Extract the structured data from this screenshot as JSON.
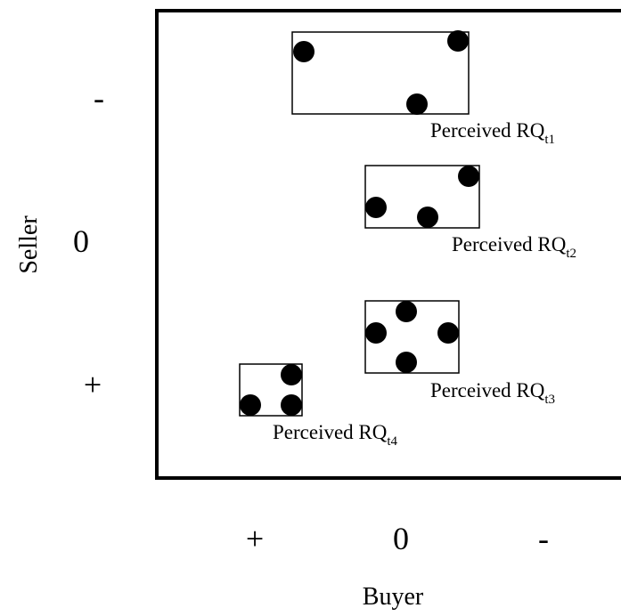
{
  "axes": {
    "x_label": "Buyer",
    "y_label": "Seller",
    "x_ticks": [
      "+",
      "0",
      "-"
    ],
    "y_ticks": [
      "-",
      "0",
      "+"
    ]
  },
  "boxes": [
    {
      "label_main": "Perceived RQ",
      "label_sub": "t1",
      "dots": 3
    },
    {
      "label_main": "Perceived RQ",
      "label_sub": "t2",
      "dots": 3
    },
    {
      "label_main": "Perceived RQ",
      "label_sub": "t3",
      "dots": 4
    },
    {
      "label_main": "Perceived RQ",
      "label_sub": "t4",
      "dots": 3
    }
  ]
}
